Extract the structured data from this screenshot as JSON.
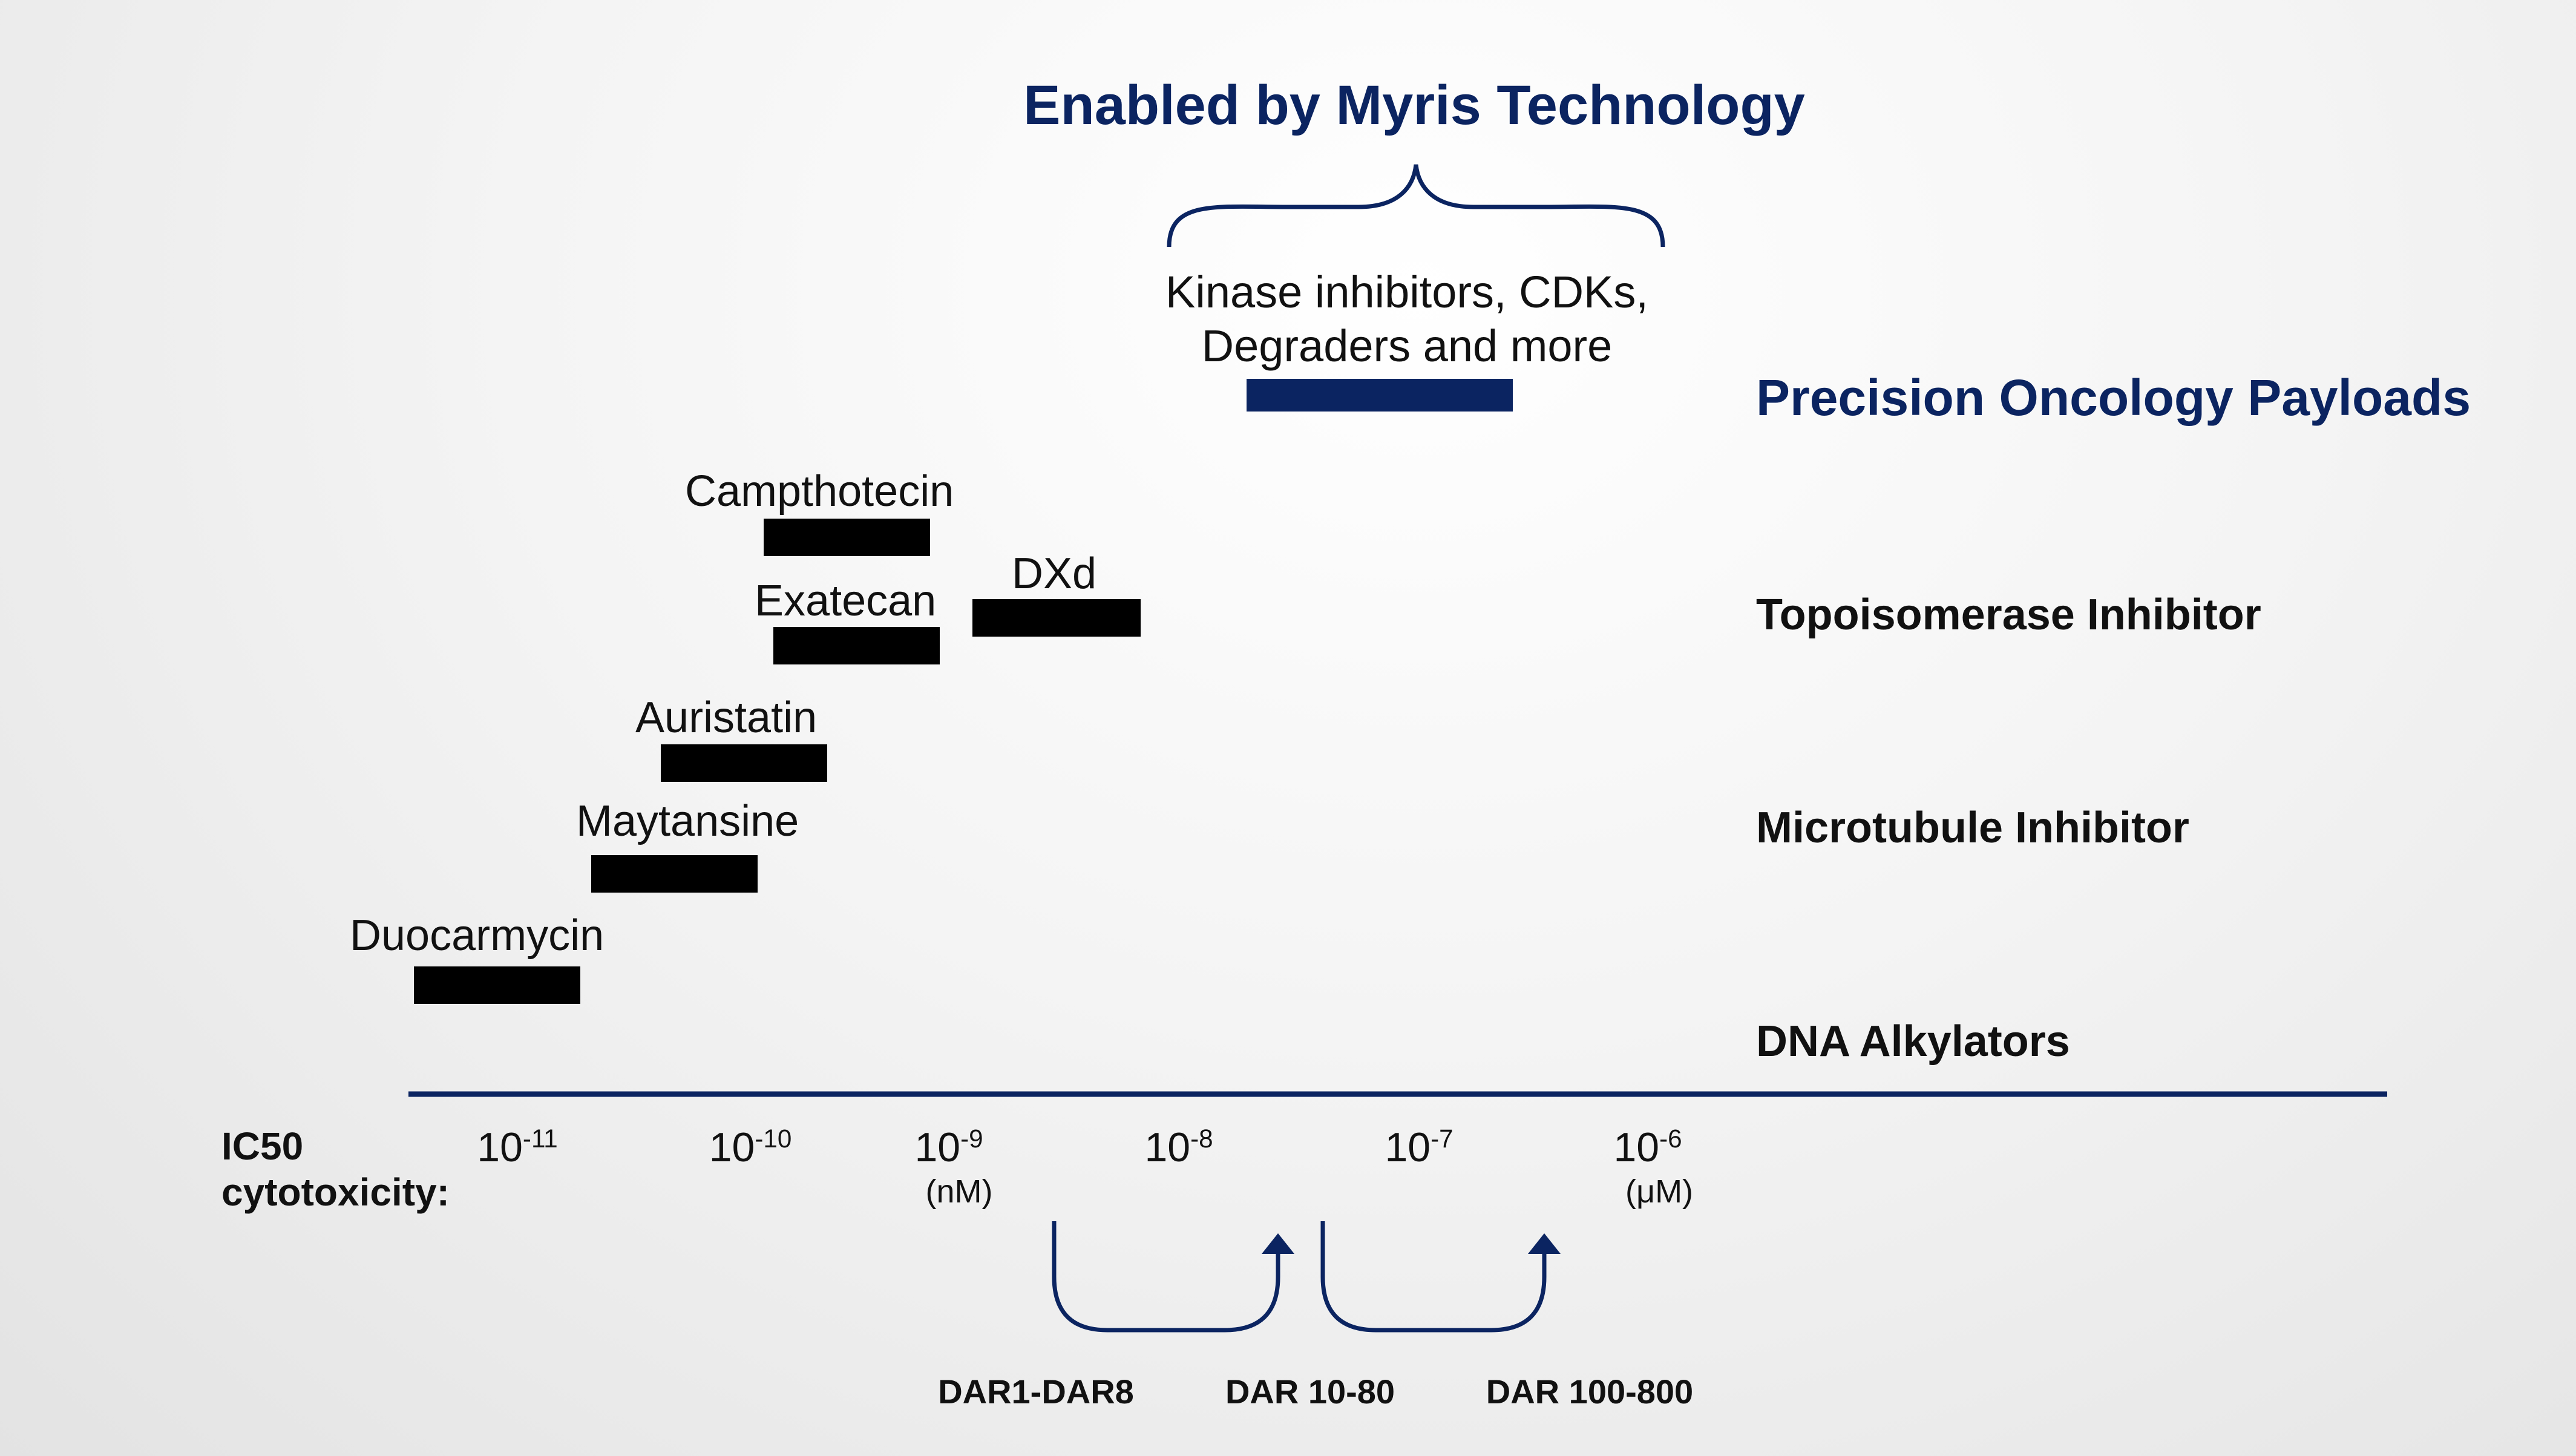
{
  "header": {
    "title": "Enabled by Myris Technology",
    "new_payloads_label_line1": "Kinase inhibitors, CDKs,",
    "new_payloads_label_line2": "Degraders and more"
  },
  "colors": {
    "navy": "#0b2461",
    "bar": "#000000",
    "text": "#111111"
  },
  "categories": [
    {
      "name": "Precision Oncology Payloads"
    },
    {
      "name": "Topoisomerase Inhibitor"
    },
    {
      "name": "Microtubule Inhibitor"
    },
    {
      "name": "DNA Alkylators"
    }
  ],
  "payloads": [
    {
      "name": "Campthotecin",
      "category": "Topoisomerase Inhibitor"
    },
    {
      "name": "Exatecan",
      "category": "Topoisomerase Inhibitor"
    },
    {
      "name": "DXd",
      "category": "Topoisomerase Inhibitor"
    },
    {
      "name": "Auristatin",
      "category": "Microtubule Inhibitor"
    },
    {
      "name": "Maytansine",
      "category": "Microtubule Inhibitor"
    },
    {
      "name": "Duocarmycin",
      "category": "DNA Alkylators"
    }
  ],
  "axis": {
    "label_line1": "IC50",
    "label_line2": "cytotoxicity:",
    "ticks": [
      {
        "base": "10",
        "exp": "-11",
        "unit": ""
      },
      {
        "base": "10",
        "exp": "-10",
        "unit": ""
      },
      {
        "base": "10",
        "exp": "-9",
        "unit": "(nM)"
      },
      {
        "base": "10",
        "exp": "-8",
        "unit": ""
      },
      {
        "base": "10",
        "exp": "-7",
        "unit": ""
      },
      {
        "base": "10",
        "exp": "-6",
        "unit": "(μM)"
      }
    ]
  },
  "dar_labels": [
    "DAR1-DAR8",
    "DAR 10-80",
    "DAR 100-800"
  ]
}
